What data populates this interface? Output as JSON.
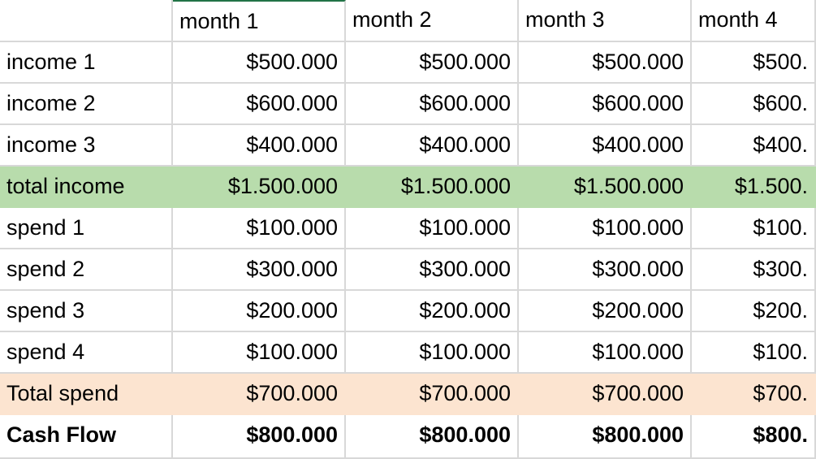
{
  "table": {
    "columns": [
      "month 1",
      "month 2",
      "month 3",
      "month 4"
    ],
    "rows": [
      {
        "label": "income 1",
        "cells": [
          "$500.000",
          "$500.000",
          "$500.000",
          "$500."
        ]
      },
      {
        "label": "income 2",
        "cells": [
          "$600.000",
          "$600.000",
          "$600.000",
          "$600."
        ]
      },
      {
        "label": "income 3",
        "cells": [
          "$400.000",
          "$400.000",
          "$400.000",
          "$400."
        ]
      },
      {
        "label": "total income",
        "cells": [
          "$1.500.000",
          "$1.500.000",
          "$1.500.000",
          "$1.500."
        ]
      },
      {
        "label": "spend 1",
        "cells": [
          "$100.000",
          "$100.000",
          "$100.000",
          "$100."
        ]
      },
      {
        "label": "spend 2",
        "cells": [
          "$300.000",
          "$300.000",
          "$300.000",
          "$300."
        ]
      },
      {
        "label": "spend 3",
        "cells": [
          "$200.000",
          "$200.000",
          "$200.000",
          "$200."
        ]
      },
      {
        "label": "spend 4",
        "cells": [
          "$100.000",
          "$100.000",
          "$100.000",
          "$100."
        ]
      },
      {
        "label": "Total spend",
        "cells": [
          "$700.000",
          "$700.000",
          "$700.000",
          "$700."
        ]
      },
      {
        "label": "Cash Flow",
        "cells": [
          "$800.000",
          "$800.000",
          "$800.000",
          "$800."
        ]
      }
    ]
  }
}
